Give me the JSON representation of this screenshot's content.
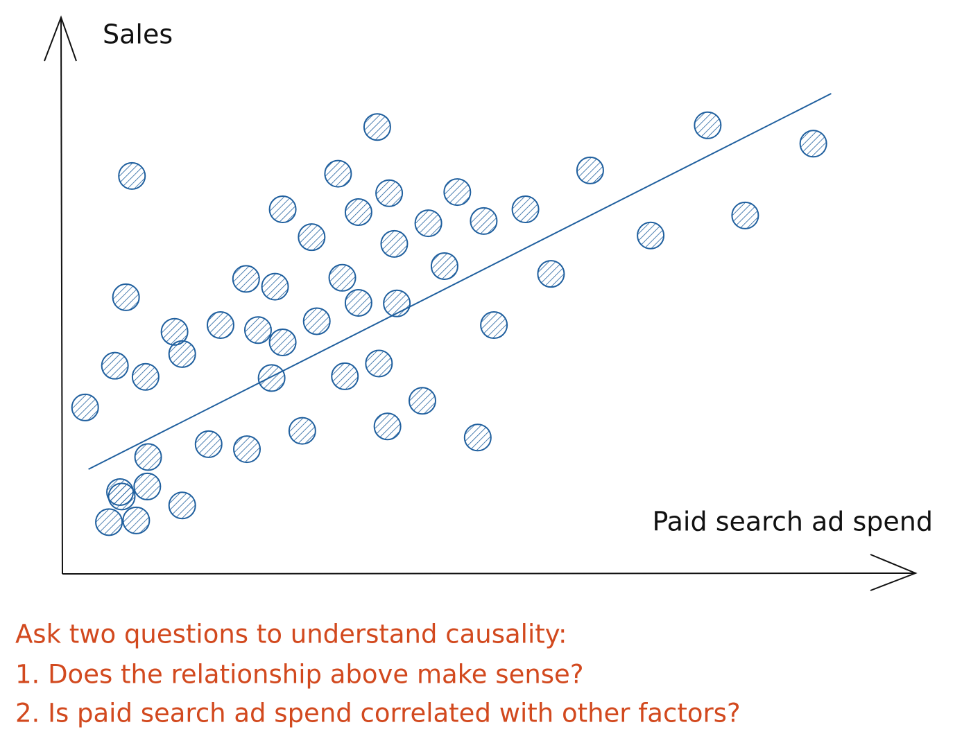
{
  "chart_data": {
    "type": "scatter",
    "y_label": "Sales",
    "x_label": "Paid search ad spend",
    "color": "#1f5f9e",
    "xlim": [
      0,
      100
    ],
    "ylim": [
      0,
      100
    ],
    "grid": false,
    "x": [
      2.5,
      6.0,
      9.6,
      13.0,
      13.9,
      7.3,
      8.0,
      9.9,
      9.8,
      6.6,
      6.8,
      5.3,
      8.5,
      13.9,
      17.0,
      21.5,
      18.4,
      22.8,
      25.7,
      24.4,
      21.4,
      24.8,
      25.7,
      29.1,
      29.7,
      28.0,
      32.2,
      32.7,
      34.6,
      34.6,
      33.0,
      36.8,
      38.2,
      38.8,
      39.1,
      37.0,
      38.0,
      42.1,
      42.8,
      44.7,
      46.2,
      49.3,
      50.5,
      48.6,
      54.2,
      57.2,
      61.8,
      68.9,
      75.6,
      80.0,
      88.0
    ],
    "values": [
      29.9,
      37.4,
      35.4,
      43.5,
      39.5,
      49.7,
      71.5,
      21.0,
      15.7,
      14.7,
      13.9,
      9.3,
      9.6,
      12.3,
      23.3,
      22.4,
      44.7,
      43.8,
      41.6,
      35.2,
      53.0,
      51.6,
      65.5,
      60.5,
      45.4,
      25.7,
      71.9,
      53.2,
      65.0,
      48.7,
      35.5,
      80.3,
      68.4,
      59.3,
      48.6,
      37.8,
      26.5,
      31.1,
      63.0,
      55.3,
      68.6,
      63.4,
      44.7,
      24.5,
      65.5,
      53.9,
      72.5,
      60.8,
      80.6,
      64.4,
      77.3
    ],
    "trendline": {
      "x": [
        2.9,
        90.1
      ],
      "y": [
        18.8,
        86.3
      ]
    },
    "annotations": [
      "Ask two questions to understand causality:",
      "1. Does the relationship above make sense?",
      "2. Is paid search ad spend correlated with other factors?"
    ]
  }
}
